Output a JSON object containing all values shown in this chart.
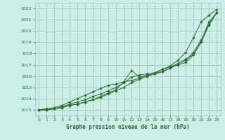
{
  "bg_color": "#cceee8",
  "grid_color": "#aaccc4",
  "line_color": "#2d6b2d",
  "marker_color": "#2d6b2d",
  "title": "Graphe pression niveau de la mer (hPa)",
  "title_color": "#2d6b2d",
  "xlim": [
    -0.5,
    23.5
  ],
  "ylim": [
    1012.5,
    1022.5
  ],
  "yticks": [
    1013,
    1014,
    1015,
    1016,
    1017,
    1018,
    1019,
    1020,
    1021,
    1022
  ],
  "xticks": [
    0,
    1,
    2,
    3,
    4,
    5,
    6,
    7,
    8,
    9,
    10,
    11,
    12,
    13,
    14,
    15,
    16,
    17,
    18,
    19,
    20,
    21,
    22,
    23
  ],
  "series": [
    [
      1013.0,
      1013.0,
      1013.1,
      1013.2,
      1013.4,
      1013.5,
      1013.7,
      1013.9,
      1014.1,
      1014.4,
      1014.7,
      1015.0,
      1015.4,
      1015.7,
      1016.0,
      1016.2,
      1016.4,
      1016.7,
      1017.0,
      1017.2,
      1017.9,
      1019.0,
      1020.5,
      1021.6
    ],
    [
      1013.0,
      1013.0,
      1013.1,
      1013.2,
      1013.4,
      1013.5,
      1013.7,
      1013.9,
      1014.2,
      1014.5,
      1014.8,
      1015.5,
      1016.5,
      1015.9,
      1016.1,
      1016.2,
      1016.4,
      1016.7,
      1017.1,
      1017.4,
      1018.1,
      1019.2,
      1020.6,
      1021.6
    ],
    [
      1013.0,
      1013.0,
      1013.1,
      1013.3,
      1013.5,
      1013.7,
      1013.9,
      1014.2,
      1014.4,
      1014.7,
      1015.0,
      1015.4,
      1015.9,
      1016.1,
      1016.2,
      1016.3,
      1016.6,
      1016.8,
      1017.1,
      1017.5,
      1017.9,
      1019.1,
      1020.8,
      1021.6
    ],
    [
      1013.0,
      1013.1,
      1013.2,
      1013.4,
      1013.7,
      1014.0,
      1014.3,
      1014.6,
      1014.9,
      1015.2,
      1015.3,
      1015.5,
      1015.6,
      1015.8,
      1016.0,
      1016.2,
      1016.6,
      1016.9,
      1017.4,
      1018.1,
      1019.4,
      1020.8,
      1021.4,
      1021.9
    ]
  ]
}
